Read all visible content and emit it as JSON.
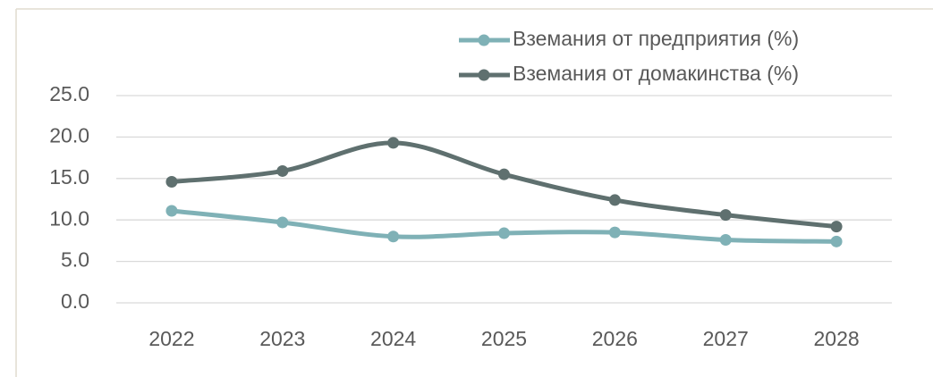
{
  "chart_data": {
    "type": "line",
    "categories": [
      "2022",
      "2023",
      "2024",
      "2025",
      "2026",
      "2027",
      "2028"
    ],
    "series": [
      {
        "name": "Вземания от предприятия (%)",
        "color": "#7fb1b6",
        "values": [
          11.1,
          9.7,
          8.0,
          8.4,
          8.5,
          7.6,
          7.4
        ]
      },
      {
        "name": "Вземания от домакинства (%)",
        "color": "#5f706f",
        "values": [
          14.6,
          15.9,
          19.3,
          15.5,
          12.4,
          10.6,
          9.2
        ]
      }
    ],
    "ylim": [
      0,
      25
    ],
    "yticks": [
      {
        "value": 0,
        "label": "0.0"
      },
      {
        "value": 5,
        "label": "5.0"
      },
      {
        "value": 10,
        "label": "10.0"
      },
      {
        "value": 15,
        "label": "15.0"
      },
      {
        "value": 20,
        "label": "20.0"
      },
      {
        "value": 25,
        "label": "25.0"
      }
    ],
    "grid": true,
    "smooth": true,
    "legend": "top-right"
  }
}
